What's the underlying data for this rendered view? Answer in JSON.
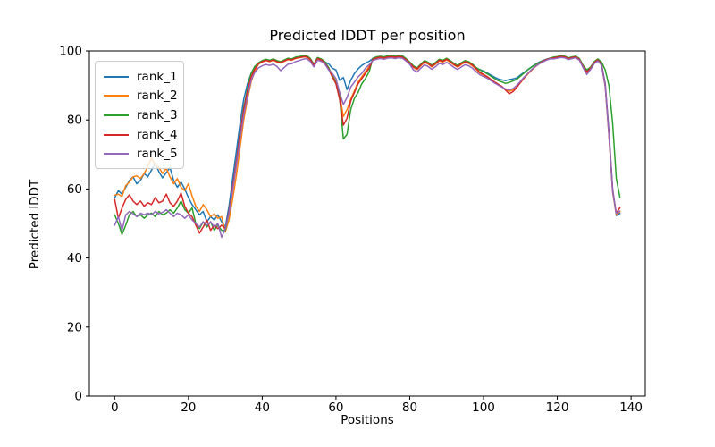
{
  "figure": {
    "background": "#ffffff"
  },
  "chart_data": {
    "type": "line",
    "title": "Predicted lDDT per position",
    "xlabel": "Positions",
    "ylabel": "Predicted lDDT",
    "xlim": [
      -6.85,
      143.85
    ],
    "ylim": [
      0,
      100
    ],
    "x_ticks": [
      0,
      20,
      40,
      60,
      80,
      100,
      120,
      140
    ],
    "y_ticks": [
      0,
      20,
      40,
      60,
      80,
      100
    ],
    "grid": false,
    "legend_position": "upper left",
    "line_width": 1.5,
    "x": {
      "start": 0,
      "step": 1,
      "count": 138
    },
    "series": [
      {
        "name": "rank_1",
        "color": "#1f77b4",
        "values": [
          57.4,
          59.5,
          58.5,
          60.5,
          62.5,
          63.5,
          61.5,
          62.5,
          64.5,
          63.5,
          65.5,
          67.4,
          65.0,
          63.2,
          64.8,
          66.2,
          62.5,
          60.5,
          62.0,
          60.0,
          57.5,
          55.5,
          54.0,
          52.5,
          53.5,
          50.5,
          52.0,
          51.0,
          52.5,
          50.5,
          49.0,
          55.0,
          63.0,
          71.0,
          79.0,
          86.0,
          90.5,
          93.5,
          95.5,
          96.5,
          97.1,
          97.5,
          97.2,
          97.6,
          97.1,
          96.8,
          97.3,
          97.8,
          97.6,
          98.1,
          98.3,
          98.5,
          98.6,
          97.8,
          96.1,
          98.0,
          97.6,
          96.8,
          96.3,
          95.0,
          94.5,
          91.5,
          92.3,
          88.8,
          91.5,
          93.5,
          94.8,
          95.8,
          96.5,
          97.0,
          97.8,
          98.2,
          98.4,
          98.2,
          98.5,
          98.6,
          98.4,
          98.6,
          98.5,
          97.7,
          96.7,
          95.6,
          95.0,
          96.1,
          97.1,
          96.6,
          95.8,
          96.6,
          97.5,
          97.2,
          97.8,
          97.1,
          96.3,
          95.7,
          96.5,
          97.1,
          96.8,
          96.1,
          95.1,
          94.6,
          94.2,
          93.6,
          93.0,
          92.4,
          91.9,
          91.6,
          91.4,
          91.7,
          91.9,
          92.2,
          93.0,
          93.8,
          94.6,
          95.4,
          96.1,
          96.7,
          97.2,
          97.6,
          97.9,
          98.1,
          98.3,
          98.5,
          98.4,
          97.9,
          98.2,
          98.4,
          97.7,
          95.5,
          94.3,
          95.1,
          96.7,
          97.5,
          96.2,
          90.5,
          77.0,
          60.0,
          52.3,
          52.9
        ]
      },
      {
        "name": "rank_2",
        "color": "#ff7f0e",
        "values": [
          58.2,
          58.5,
          57.8,
          61.0,
          62.0,
          63.5,
          63.8,
          63.0,
          64.5,
          66.5,
          69.0,
          67.0,
          66.2,
          64.5,
          66.0,
          63.5,
          61.5,
          63.0,
          60.5,
          59.5,
          61.5,
          58.0,
          55.0,
          53.5,
          55.5,
          54.0,
          52.0,
          52.8,
          51.5,
          52.0,
          47.5,
          51.0,
          57.0,
          64.0,
          72.0,
          80.0,
          86.0,
          91.0,
          94.2,
          96.2,
          96.8,
          97.2,
          96.9,
          97.3,
          96.8,
          96.5,
          97.0,
          97.5,
          97.3,
          97.8,
          98.0,
          98.2,
          98.3,
          97.5,
          95.8,
          97.7,
          97.3,
          96.4,
          95.0,
          93.2,
          91.0,
          87.5,
          81.0,
          83.0,
          86.0,
          88.5,
          91.0,
          92.5,
          94.0,
          95.5,
          97.5,
          97.9,
          98.1,
          97.9,
          98.2,
          98.3,
          98.1,
          98.3,
          98.2,
          97.4,
          96.4,
          95.2,
          94.6,
          95.7,
          96.7,
          96.2,
          95.4,
          96.2,
          97.1,
          96.8,
          97.4,
          96.7,
          95.9,
          95.3,
          96.1,
          96.7,
          96.4,
          95.7,
          94.7,
          93.6,
          93.0,
          92.4,
          91.6,
          90.8,
          90.2,
          89.6,
          88.9,
          88.3,
          88.7,
          89.6,
          90.8,
          92.1,
          93.3,
          94.4,
          95.4,
          96.2,
          96.9,
          97.4,
          97.8,
          97.9,
          98.1,
          98.3,
          98.2,
          97.7,
          98.0,
          98.2,
          97.5,
          95.2,
          93.5,
          94.7,
          96.4,
          97.2,
          95.9,
          89.5,
          75.5,
          59.0,
          52.6,
          53.4
        ]
      },
      {
        "name": "rank_3",
        "color": "#2ca02c",
        "values": [
          52.5,
          50.0,
          46.8,
          49.5,
          52.5,
          53.5,
          52.0,
          52.5,
          51.5,
          52.5,
          53.0,
          52.0,
          53.5,
          52.5,
          53.0,
          54.0,
          53.0,
          54.5,
          56.5,
          54.0,
          53.0,
          54.5,
          50.0,
          48.5,
          50.5,
          49.0,
          50.5,
          48.0,
          49.5,
          48.0,
          48.0,
          53.0,
          60.0,
          68.0,
          76.0,
          83.5,
          89.0,
          93.5,
          95.5,
          96.6,
          97.2,
          97.6,
          97.3,
          97.7,
          97.2,
          96.9,
          97.4,
          97.9,
          97.7,
          98.2,
          98.4,
          98.6,
          98.7,
          97.9,
          96.2,
          98.1,
          97.7,
          96.9,
          95.2,
          92.8,
          90.8,
          86.5,
          74.5,
          75.8,
          83.0,
          86.3,
          88.0,
          90.5,
          92.0,
          94.0,
          97.9,
          98.3,
          98.5,
          98.3,
          98.6,
          98.7,
          98.5,
          98.7,
          98.6,
          97.8,
          96.8,
          95.7,
          95.1,
          96.2,
          97.2,
          96.7,
          95.9,
          96.7,
          97.6,
          97.3,
          97.9,
          97.2,
          96.4,
          95.8,
          96.6,
          97.2,
          96.9,
          96.2,
          95.2,
          94.5,
          94.0,
          93.4,
          92.7,
          92.0,
          91.4,
          91.0,
          90.6,
          90.9,
          91.3,
          91.8,
          92.7,
          93.6,
          94.5,
          95.3,
          96.0,
          96.6,
          97.1,
          97.5,
          97.9,
          98.2,
          98.4,
          98.6,
          98.5,
          98.0,
          98.3,
          98.5,
          97.8,
          95.8,
          94.5,
          95.3,
          96.9,
          97.7,
          96.8,
          94.5,
          90.0,
          79.0,
          63.0,
          57.5
        ]
      },
      {
        "name": "rank_4",
        "color": "#d62728",
        "values": [
          57.0,
          51.5,
          54.5,
          57.0,
          58.3,
          56.5,
          55.5,
          56.5,
          55.0,
          56.0,
          55.5,
          57.5,
          56.0,
          56.5,
          58.5,
          56.0,
          55.0,
          56.5,
          58.8,
          55.0,
          53.0,
          52.0,
          49.5,
          47.2,
          49.0,
          51.0,
          48.0,
          49.5,
          48.5,
          49.5,
          48.5,
          53.5,
          60.5,
          68.0,
          76.0,
          83.0,
          88.5,
          92.5,
          94.8,
          96.3,
          96.9,
          97.3,
          97.0,
          97.4,
          96.9,
          96.6,
          97.1,
          97.6,
          97.4,
          97.9,
          98.1,
          98.3,
          98.4,
          97.6,
          95.9,
          97.8,
          97.4,
          96.5,
          94.8,
          92.5,
          90.5,
          86.0,
          78.5,
          80.5,
          85.5,
          88.0,
          90.5,
          92.0,
          93.5,
          95.0,
          97.6,
          98.0,
          98.2,
          98.0,
          98.3,
          98.4,
          98.2,
          98.4,
          98.3,
          97.5,
          96.5,
          95.4,
          94.8,
          95.9,
          96.9,
          96.4,
          95.6,
          96.4,
          97.3,
          97.0,
          97.6,
          96.9,
          96.1,
          95.5,
          96.3,
          96.9,
          96.6,
          95.9,
          94.9,
          93.8,
          93.2,
          92.6,
          91.8,
          91.0,
          90.4,
          89.7,
          88.6,
          87.6,
          88.2,
          89.4,
          90.9,
          92.2,
          93.4,
          94.5,
          95.5,
          96.3,
          97.0,
          97.5,
          97.8,
          98.0,
          98.2,
          98.4,
          98.3,
          97.8,
          98.1,
          98.3,
          97.6,
          95.4,
          93.9,
          95.0,
          96.6,
          97.4,
          96.0,
          90.0,
          76.0,
          59.5,
          53.0,
          54.6
        ]
      },
      {
        "name": "rank_5",
        "color": "#9467bd",
        "values": [
          49.5,
          52.0,
          48.0,
          52.5,
          53.5,
          52.8,
          52.0,
          53.0,
          52.5,
          53.0,
          52.5,
          53.5,
          52.8,
          53.2,
          54.0,
          53.0,
          52.0,
          53.0,
          52.5,
          51.5,
          52.5,
          51.0,
          50.0,
          49.0,
          50.5,
          49.5,
          50.5,
          49.0,
          50.0,
          46.0,
          48.5,
          53.0,
          59.5,
          67.0,
          74.5,
          81.5,
          87.0,
          91.5,
          93.8,
          95.1,
          95.7,
          96.1,
          95.8,
          96.2,
          95.5,
          94.3,
          95.2,
          96.2,
          96.3,
          96.9,
          97.2,
          97.6,
          97.8,
          97.0,
          95.4,
          97.3,
          97.0,
          96.2,
          94.5,
          93.5,
          92.0,
          88.0,
          84.5,
          86.5,
          89.5,
          91.0,
          92.5,
          93.5,
          95.0,
          96.0,
          97.2,
          97.6,
          97.8,
          97.6,
          97.9,
          98.0,
          97.8,
          98.0,
          97.9,
          97.1,
          96.1,
          94.5,
          93.9,
          95.0,
          96.0,
          95.5,
          94.7,
          95.5,
          96.4,
          96.1,
          96.7,
          96.0,
          95.2,
          94.6,
          95.4,
          96.0,
          95.7,
          95.0,
          94.0,
          93.1,
          92.6,
          92.1,
          91.4,
          90.7,
          90.1,
          89.5,
          89.0,
          88.7,
          89.1,
          90.0,
          91.2,
          92.4,
          93.5,
          94.6,
          95.5,
          96.2,
          96.8,
          97.3,
          97.7,
          97.7,
          97.9,
          98.1,
          98.0,
          97.5,
          97.8,
          98.0,
          97.3,
          95.1,
          93.2,
          94.6,
          96.3,
          97.1,
          95.8,
          89.8,
          75.8,
          59.3,
          52.9,
          53.6
        ]
      }
    ]
  }
}
